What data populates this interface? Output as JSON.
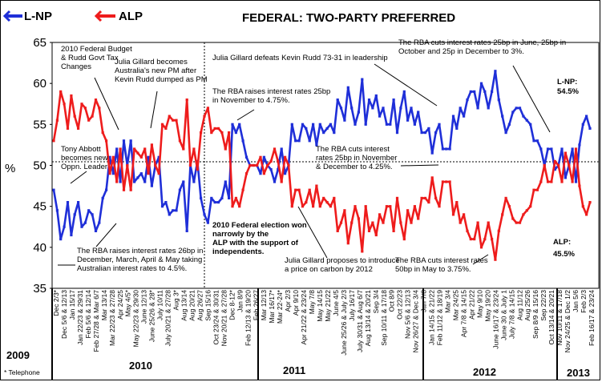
{
  "chart_data": {
    "type": "line",
    "title": "FEDERAL: TWO-PARTY PREFERRED",
    "ylabel": "%",
    "ylim": [
      35,
      65
    ],
    "yticks": [
      "35",
      "40",
      "45",
      "50",
      "55",
      "60",
      "65"
    ],
    "legend": [
      "L-NP",
      "ALP"
    ],
    "colors": {
      "lnp": "#1f2fd8",
      "alp": "#ee1c1c"
    },
    "series": [
      {
        "name": "L-NP",
        "color": "#1f2fd8",
        "values": [
          47,
          44.5,
          41,
          42.5,
          45.5,
          41.5,
          44,
          45.5,
          42.5,
          43,
          44.5,
          44,
          42,
          43,
          46,
          47,
          51,
          49,
          52,
          48,
          53,
          50,
          53,
          48,
          48.5,
          49,
          48,
          51,
          47.5,
          50,
          51,
          45,
          45.5,
          44,
          44.5,
          44.5,
          47,
          48,
          42,
          50,
          48,
          50.5,
          46,
          44,
          43,
          46,
          45.5,
          45.5,
          46,
          48,
          46,
          55,
          54,
          55,
          53,
          51,
          50,
          50,
          50,
          49,
          51,
          50,
          49.5,
          48,
          49.5,
          52,
          49,
          50,
          55,
          53,
          53,
          55,
          54.5,
          53,
          55,
          52.5,
          55,
          54,
          54.5,
          55,
          54,
          58,
          57,
          55.5,
          59.5,
          57,
          55,
          56.5,
          60.5,
          55,
          58,
          57,
          58.5,
          56,
          57,
          55,
          55,
          58,
          54,
          57,
          59,
          55.5,
          57,
          55,
          56.5,
          54,
          54,
          54.5,
          51.5,
          54,
          55,
          52,
          52,
          52,
          56,
          54.5,
          57,
          56,
          58,
          59,
          59,
          57,
          60,
          59,
          57,
          59,
          61.5,
          58,
          56,
          54,
          55,
          56.5,
          57,
          57,
          56,
          55.5,
          55,
          53,
          53,
          52,
          50,
          52,
          52,
          49.5,
          50,
          52,
          48.5,
          50,
          52,
          48,
          52.5,
          55,
          56,
          54.5
        ]
      },
      {
        "name": "ALP",
        "color": "#ee1c1c",
        "values": [
          53,
          55.5,
          59,
          57.5,
          54.5,
          58.5,
          56,
          54.5,
          57.5,
          57,
          55.5,
          56,
          58,
          57,
          54,
          53,
          49,
          51,
          48,
          52,
          47,
          50,
          47,
          52,
          51.5,
          51,
          52,
          49,
          52.5,
          50,
          49,
          55,
          54.5,
          56,
          55.5,
          55.5,
          53,
          52,
          58,
          50,
          52,
          49.5,
          54,
          56,
          57,
          54,
          54.5,
          54.5,
          54,
          52,
          54,
          45,
          46,
          45,
          47,
          49,
          50,
          50,
          50,
          51,
          49,
          50,
          50.5,
          52,
          50.5,
          48,
          51,
          50,
          45,
          47,
          47,
          45,
          45.5,
          47,
          45,
          47.5,
          45,
          46,
          45.5,
          45,
          46,
          42,
          43,
          44.5,
          40.5,
          43,
          45,
          43.5,
          39.5,
          45,
          42,
          43,
          41.5,
          44,
          43,
          45,
          45,
          42,
          46,
          43,
          41,
          44.5,
          43,
          45,
          43.5,
          46,
          46,
          45.5,
          48.5,
          46,
          45,
          48,
          48,
          48,
          44,
          45.5,
          43,
          44,
          42,
          41,
          41,
          43,
          40,
          41,
          43,
          41,
          38.5,
          42,
          44,
          46,
          45,
          43.5,
          43,
          43,
          44,
          44.5,
          45,
          47,
          47,
          48,
          50,
          48,
          48,
          50.5,
          50,
          48,
          51.5,
          50,
          48,
          52,
          47.5,
          45,
          44,
          45.5
        ]
      }
    ],
    "years": [
      "2009",
      "2010",
      "2011",
      "2012",
      "2013"
    ],
    "x_tick_labels": [
      "Dec 2/3*",
      "Dec 5/6 & 12/13",
      "Jan 15/17",
      "Jan 22/23 & 29/31",
      "Feb 5/6 & 12/14",
      "Feb 27/28 & Mar 6/7",
      "Mar 13/14",
      "Mar 22/23 & 27/28",
      "Apr 24/25",
      "May 4/5*",
      "May 22/23 & 29/30",
      "June 12/13",
      "June 25/26 & 28*",
      "July 10/11",
      "July 20/21 & 27/28",
      "Aug 3*",
      "Aug 13/14",
      "Aug 20/21",
      "Aug 26/27",
      "Sep 15/16",
      "Oct 23/24 & 30/31",
      "Nov 20/21 & 27/28",
      "Dec 8-12*",
      "Jan 8/9",
      "Feb 12/13 & 19/20",
      "Feb 26/27",
      "Mar 12/13",
      "Mar 16/17*",
      "Mar 22-24*",
      "Apr 2/3",
      "Apr 9/10",
      "Apr 21/22 & 23/24",
      "May 7/8",
      "May 14/15",
      "May 21/22",
      "June 4/5",
      "June 25/26 & July 2/3",
      "July 16/17",
      "July 30/31 & Aug 6/7",
      "Aug 13/14 & 20/21",
      "Sep 3/4",
      "Sep 10/11 & 17/18",
      "Oct 8/9",
      "Oct 22/23",
      "Nov 5/6 & 12/13",
      "Nov 26/27 & Dec 3/4",
      "Jan 7/8",
      "Jan 14/15 & 21/22",
      "Feb 11/12 & 18/19",
      "Mar 3/4",
      "Mar 24/25",
      "Apr 7/8 & 14/15",
      "Apr 21/22",
      "May 9/10",
      "May 19/20",
      "June 16/17 & 23/24",
      "June 30 & July 1",
      "July 7/8 & 14/15",
      "Aug 11/12",
      "Aug 25/26",
      "Sep 8/9 & 15/16",
      "Sep 22/23",
      "Oct 13/14 & 20/21",
      "Nov 10/11 & 17/18",
      "Nov 24/25 & Dec 1/2",
      "Jan 5/6",
      "Feb 2/3",
      "Feb 16/17 & 23/24"
    ],
    "footnote": "* Telephone",
    "end_labels": {
      "lnp_title": "L-NP:",
      "lnp_value": "54.5%",
      "alp_title": "ALP:",
      "alp_value": "45.5%"
    },
    "annotations": [
      {
        "id": "a1",
        "lines": [
          "2010 Federal Budget",
          "& Rudd Govt Tax",
          "Changes"
        ]
      },
      {
        "id": "a2",
        "lines": [
          "Julia Gillard becomes",
          "Australia's new PM after",
          "Kevin Rudd dumped as PM"
        ]
      },
      {
        "id": "a3",
        "lines": [
          "Julia Gillard defeats Kevin Rudd 73-31 in leadership"
        ]
      },
      {
        "id": "a4",
        "lines": [
          "The RBA cuts interest rates 25bp in June, 25bp in",
          "October and 25p in December to 3%."
        ]
      },
      {
        "id": "a5",
        "lines": [
          "The RBA raises interest rates 25bp",
          "in November to 4.75%."
        ]
      },
      {
        "id": "a6",
        "lines": [
          "Tony Abbott",
          "becomes new",
          "Oppn. Leader"
        ]
      },
      {
        "id": "a7",
        "lines": [
          "The RBA cuts interest",
          "rates 25bp in November",
          "& December to 4.25%."
        ]
      },
      {
        "id": "a8",
        "lines": [
          "2010 Federal election won",
          "narrowly by the",
          "ALP with the support of",
          "independents."
        ]
      },
      {
        "id": "a9",
        "lines": [
          "The RBA raises interest rates 26bp in",
          "December, March, April & May taking",
          "Australian interest rates to 4.5%."
        ]
      },
      {
        "id": "a10",
        "lines": [
          "Julia Gillard proposes to introduce",
          "a price on carbon by 2012"
        ]
      },
      {
        "id": "a11",
        "lines": [
          "The RBA cuts interest rates",
          "50bp in May to 3.75%."
        ]
      }
    ]
  }
}
